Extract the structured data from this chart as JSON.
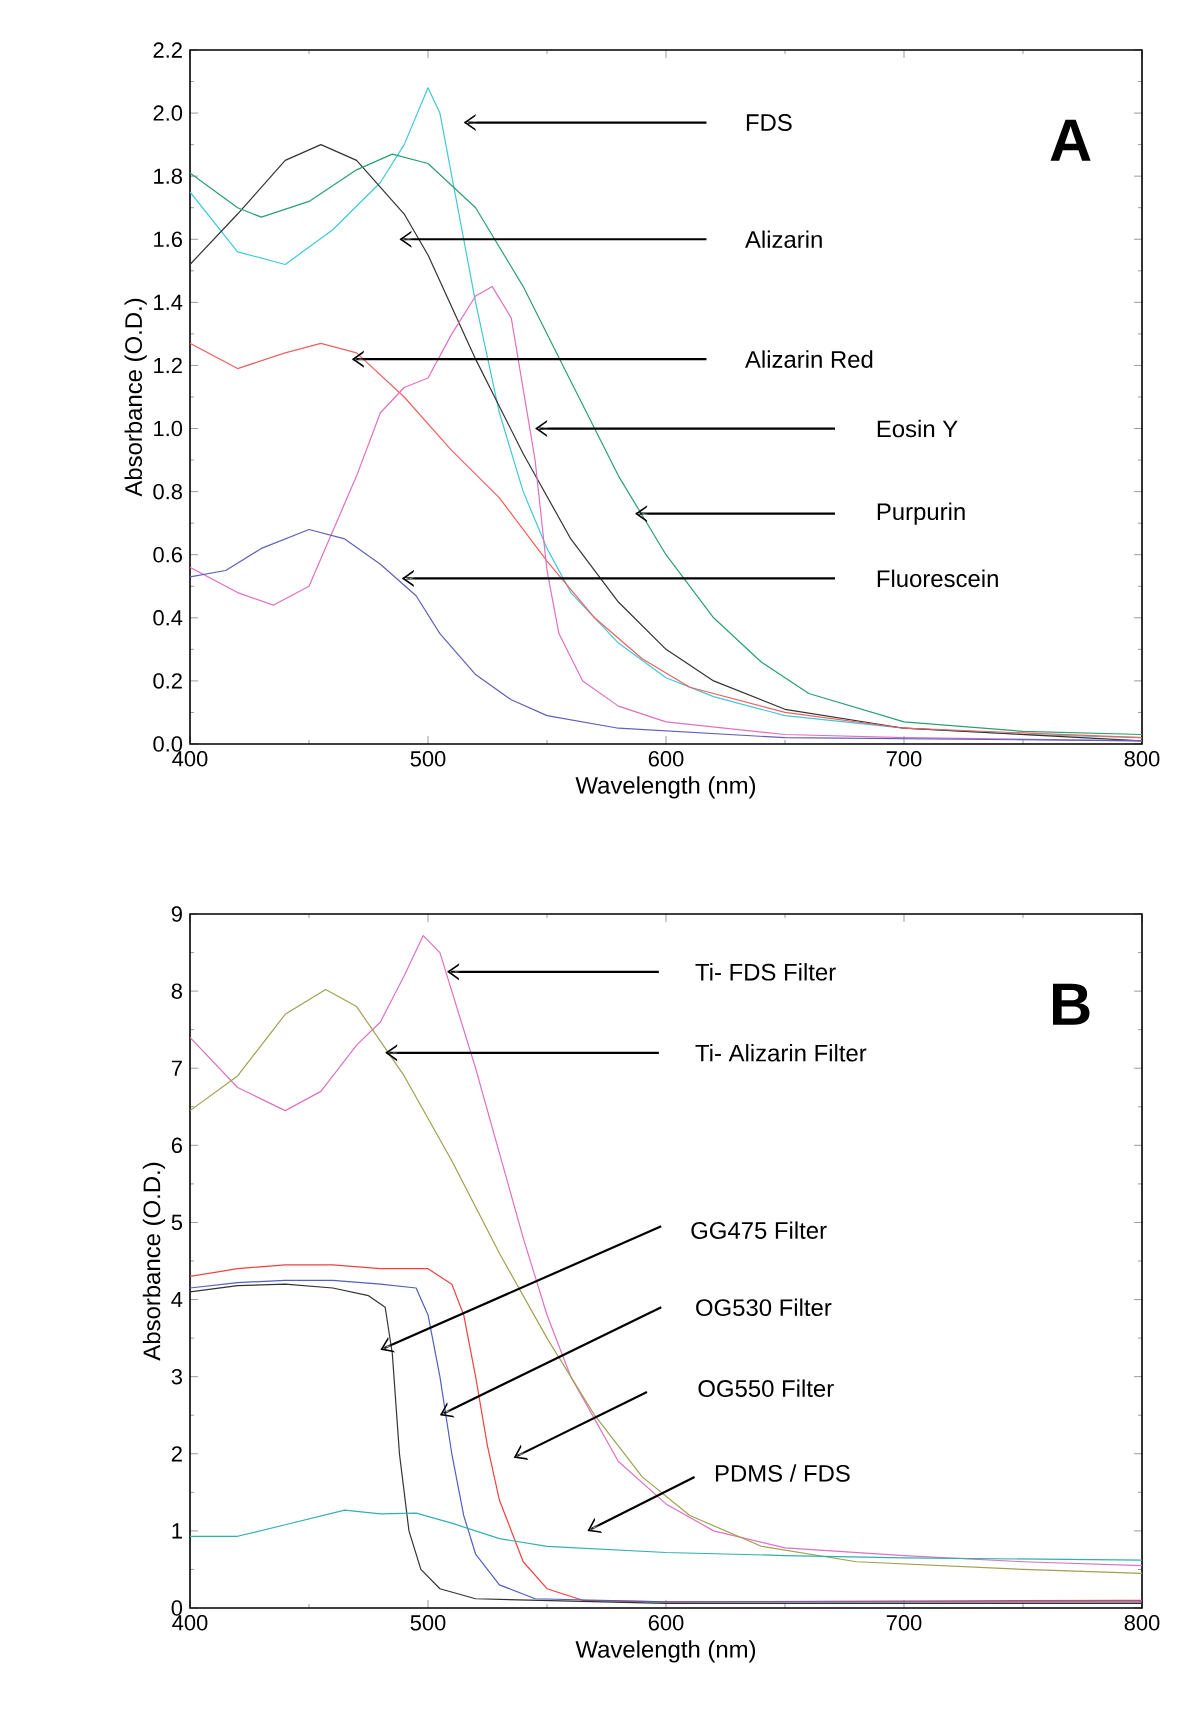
{
  "chart_data": [
    {
      "type": "line",
      "xlabel": "Wavelength (nm)",
      "ylabel": "Absorbance (O.D.)",
      "xlim": [
        400,
        800
      ],
      "ylim": [
        0,
        2.2
      ],
      "xticks": [
        400,
        500,
        600,
        700,
        800
      ],
      "yticks": [
        {
          "value": 0,
          "label": "0.0"
        },
        0.2,
        0.4,
        0.6,
        0.8,
        {
          "value": 1,
          "label": "1.0"
        },
        1.2,
        1.4,
        1.6,
        1.8,
        {
          "value": 2,
          "label": "2.0"
        },
        2.2
      ],
      "grid": false,
      "marker": "none",
      "line_style": "solid",
      "series": [
        {
          "color": "#3fc8d8",
          "x": [
            400,
            420,
            440,
            460,
            480,
            490,
            500,
            505,
            510,
            520,
            530,
            540,
            550,
            560,
            580,
            600,
            620,
            650,
            700,
            750,
            800
          ],
          "values": [
            1.75,
            1.56,
            1.52,
            1.63,
            1.78,
            1.9,
            2.08,
            2.0,
            1.8,
            1.4,
            1.05,
            0.8,
            0.62,
            0.48,
            0.32,
            0.21,
            0.15,
            0.09,
            0.05,
            0.03,
            0.02
          ]
        },
        {
          "color": "#333333",
          "x": [
            400,
            420,
            440,
            455,
            470,
            490,
            500,
            520,
            540,
            560,
            580,
            600,
            620,
            650,
            700,
            800
          ],
          "values": [
            1.52,
            1.68,
            1.85,
            1.9,
            1.85,
            1.68,
            1.55,
            1.22,
            0.92,
            0.65,
            0.45,
            0.3,
            0.2,
            0.11,
            0.05,
            0.01
          ]
        },
        {
          "color": "#f06060",
          "x": [
            400,
            420,
            440,
            455,
            470,
            490,
            510,
            530,
            550,
            570,
            590,
            610,
            650,
            700,
            800
          ],
          "values": [
            1.27,
            1.19,
            1.24,
            1.27,
            1.24,
            1.1,
            0.93,
            0.78,
            0.58,
            0.4,
            0.27,
            0.18,
            0.1,
            0.05,
            0.02
          ]
        },
        {
          "color": "#e070c0",
          "x": [
            400,
            420,
            435,
            450,
            470,
            480,
            490,
            500,
            510,
            520,
            527,
            535,
            545,
            550,
            555,
            565,
            580,
            600,
            650,
            700,
            800
          ],
          "values": [
            0.56,
            0.48,
            0.44,
            0.5,
            0.85,
            1.05,
            1.13,
            1.16,
            1.3,
            1.42,
            1.45,
            1.35,
            0.9,
            0.55,
            0.35,
            0.2,
            0.12,
            0.07,
            0.03,
            0.02,
            0.01
          ]
        },
        {
          "color": "#2aa070",
          "x": [
            400,
            420,
            430,
            450,
            470,
            485,
            500,
            520,
            540,
            560,
            580,
            600,
            620,
            640,
            660,
            700,
            750,
            800
          ],
          "values": [
            1.81,
            1.7,
            1.67,
            1.72,
            1.82,
            1.87,
            1.84,
            1.7,
            1.45,
            1.15,
            0.85,
            0.6,
            0.4,
            0.26,
            0.16,
            0.07,
            0.04,
            0.03
          ]
        },
        {
          "color": "#6060b8",
          "x": [
            400,
            415,
            430,
            450,
            465,
            480,
            495,
            505,
            520,
            535,
            550,
            580,
            650,
            800
          ],
          "values": [
            0.53,
            0.55,
            0.62,
            0.68,
            0.65,
            0.57,
            0.47,
            0.35,
            0.22,
            0.14,
            0.09,
            0.05,
            0.02,
            0.01
          ]
        }
      ],
      "annotations": [
        "FDS",
        "Alizarin",
        "Alizarin Red",
        "Eosin Y",
        "Purpurin",
        "Fluorescein",
        "A"
      ]
    },
    {
      "type": "line",
      "xlabel": "Wavelength (nm)",
      "ylabel": "Absorbance (O.D.)",
      "xlim": [
        400,
        800
      ],
      "ylim": [
        0,
        9
      ],
      "xticks": [
        400,
        500,
        600,
        700,
        800
      ],
      "yticks": [
        0,
        1,
        2,
        3,
        4,
        5,
        6,
        7,
        8,
        9
      ],
      "grid": false,
      "marker": "none",
      "line_style": "solid",
      "series": [
        {
          "color": "#e070c0",
          "x": [
            400,
            420,
            440,
            455,
            470,
            480,
            490,
            498,
            505,
            510,
            520,
            530,
            540,
            550,
            560,
            580,
            600,
            620,
            650,
            700,
            750,
            800
          ],
          "values": [
            7.4,
            6.75,
            6.45,
            6.7,
            7.3,
            7.6,
            8.2,
            8.72,
            8.5,
            8.0,
            7.0,
            5.9,
            4.8,
            3.8,
            3.0,
            1.9,
            1.35,
            1.0,
            0.78,
            0.68,
            0.6,
            0.55
          ]
        },
        {
          "color": "#a0a050",
          "x": [
            400,
            420,
            440,
            457,
            470,
            490,
            510,
            530,
            550,
            570,
            590,
            610,
            640,
            680,
            750,
            800
          ],
          "values": [
            6.45,
            6.9,
            7.7,
            8.02,
            7.8,
            6.9,
            5.8,
            4.6,
            3.5,
            2.5,
            1.7,
            1.2,
            0.8,
            0.6,
            0.5,
            0.45
          ]
        },
        {
          "color": "#f04040",
          "x": [
            400,
            420,
            440,
            460,
            480,
            500,
            510,
            515,
            520,
            525,
            530,
            540,
            550,
            565,
            600,
            800
          ],
          "values": [
            4.3,
            4.4,
            4.45,
            4.45,
            4.4,
            4.4,
            4.2,
            3.8,
            3.0,
            2.1,
            1.4,
            0.6,
            0.25,
            0.1,
            0.08,
            0.1
          ]
        },
        {
          "color": "#5060c0",
          "x": [
            400,
            420,
            440,
            460,
            480,
            495,
            500,
            505,
            510,
            515,
            520,
            530,
            545,
            600,
            800
          ],
          "values": [
            4.15,
            4.22,
            4.25,
            4.25,
            4.2,
            4.15,
            3.8,
            3.0,
            2.0,
            1.2,
            0.7,
            0.3,
            0.12,
            0.08,
            0.08
          ]
        },
        {
          "color": "#333333",
          "x": [
            400,
            420,
            440,
            460,
            475,
            482,
            485,
            488,
            492,
            497,
            505,
            520,
            600,
            800
          ],
          "values": [
            4.1,
            4.18,
            4.2,
            4.15,
            4.05,
            3.9,
            3.3,
            2.0,
            1.0,
            0.5,
            0.25,
            0.12,
            0.06,
            0.06
          ]
        },
        {
          "color": "#30b0b0",
          "x": [
            400,
            420,
            440,
            465,
            480,
            495,
            510,
            530,
            550,
            600,
            650,
            700,
            800
          ],
          "values": [
            0.93,
            0.93,
            1.08,
            1.27,
            1.22,
            1.23,
            1.1,
            0.9,
            0.8,
            0.72,
            0.68,
            0.65,
            0.62
          ]
        }
      ],
      "annotations": [
        "Ti- FDS Filter",
        "Ti- Alizarin Filter",
        "GG475 Filter",
        "OG530 Filter",
        "OG550 Filter",
        "PDMS / FDS",
        "B"
      ]
    }
  ]
}
